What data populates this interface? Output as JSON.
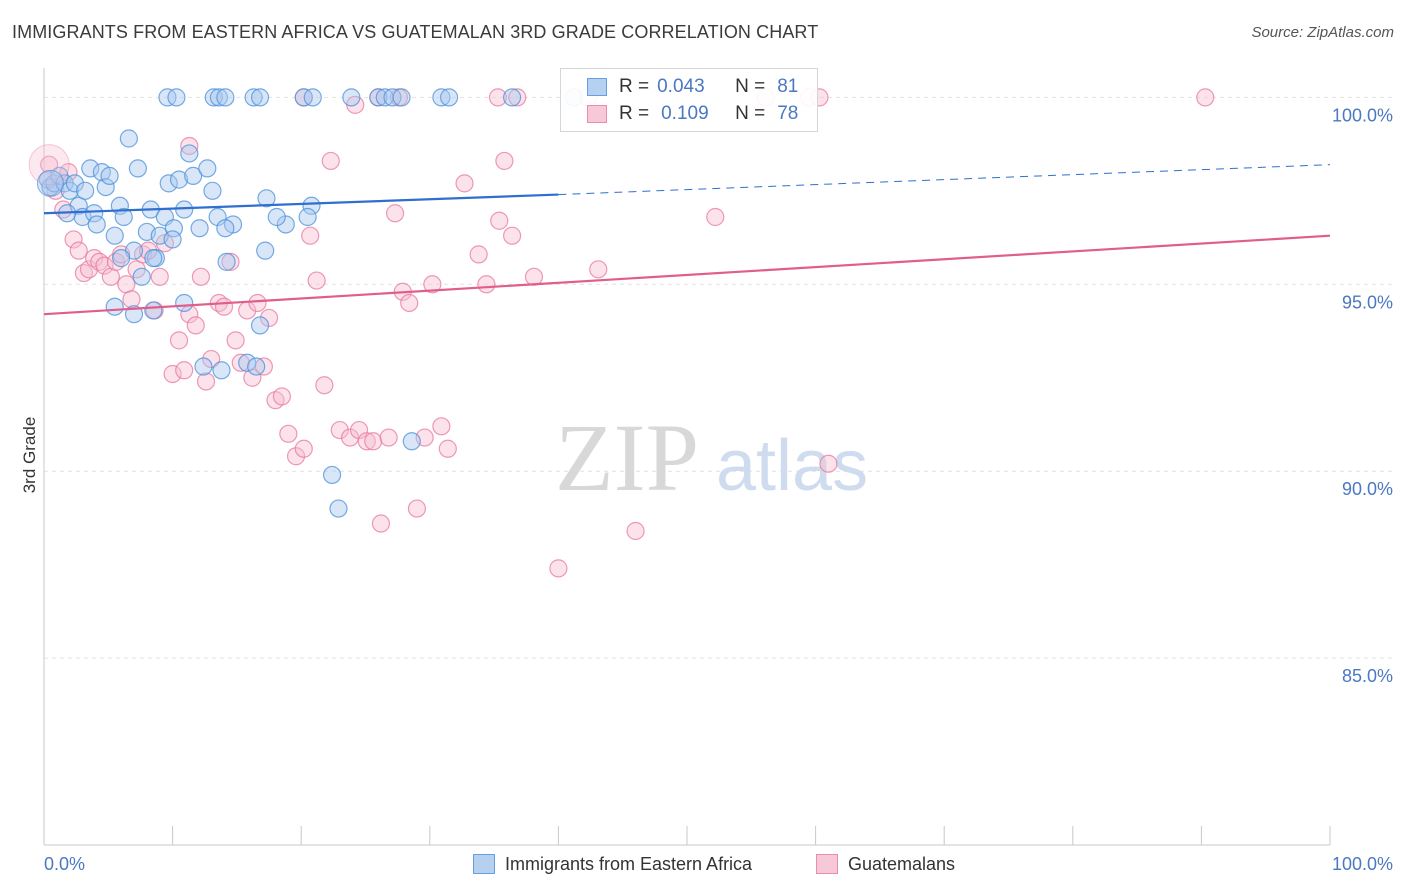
{
  "chart_data": {
    "type": "scatter",
    "title": "IMMIGRANTS FROM EASTERN AFRICA VS GUATEMALAN 3RD GRADE CORRELATION CHART",
    "source": "Source: ZipAtlas.com",
    "xlabel": "",
    "ylabel": "3rd Grade",
    "xlim": [
      0,
      100
    ],
    "ylim": [
      80,
      101
    ],
    "x_tick_labels": [
      "0.0%",
      "100.0%"
    ],
    "y_ticks": [
      85,
      90,
      95,
      100
    ],
    "y_tick_labels": [
      "85.0%",
      "90.0%",
      "95.0%",
      "100.0%"
    ],
    "grid": true,
    "watermark": {
      "zip": "ZIP",
      "atlas": "atlas"
    },
    "stats": [
      {
        "r_label": "R =",
        "r": "0.043",
        "n_label": "N =",
        "n": "81"
      },
      {
        "r_label": "R =",
        "r": "0.109",
        "n_label": "N =",
        "n": "78"
      }
    ],
    "series": [
      {
        "name": "Immigrants from Eastern Africa",
        "color": "#4a90d9",
        "fill": "#a9c8ef",
        "trend": {
          "x0": 0,
          "y0": 96.9,
          "x1": 40,
          "y1": 97.4,
          "dash_to_x": 100,
          "dash_to_y": 98.2
        },
        "points": [
          [
            0.3,
            97.8
          ],
          [
            0.5,
            97.6
          ],
          [
            0.8,
            97.7
          ],
          [
            1.2,
            97.9
          ],
          [
            1.6,
            97.7
          ],
          [
            2.0,
            97.5
          ],
          [
            2.4,
            97.7
          ],
          [
            2.7,
            97.1
          ],
          [
            3.0,
            96.8
          ],
          [
            3.2,
            97.5
          ],
          [
            3.6,
            98.1
          ],
          [
            3.9,
            96.9
          ],
          [
            4.1,
            96.6
          ],
          [
            4.5,
            98.0
          ],
          [
            4.8,
            97.6
          ],
          [
            5.1,
            97.9
          ],
          [
            5.5,
            96.3
          ],
          [
            5.9,
            97.1
          ],
          [
            6.2,
            96.8
          ],
          [
            6.6,
            98.9
          ],
          [
            7.0,
            95.9
          ],
          [
            7.3,
            98.1
          ],
          [
            7.6,
            95.2
          ],
          [
            8.0,
            96.4
          ],
          [
            8.3,
            97.0
          ],
          [
            8.7,
            95.7
          ],
          [
            9.0,
            96.3
          ],
          [
            9.4,
            96.8
          ],
          [
            9.7,
            97.7
          ],
          [
            10.1,
            96.5
          ],
          [
            10.5,
            97.8
          ],
          [
            10.9,
            97.0
          ],
          [
            11.3,
            98.5
          ],
          [
            11.6,
            97.9
          ],
          [
            12.1,
            96.5
          ],
          [
            12.7,
            98.1
          ],
          [
            13.1,
            97.5
          ],
          [
            13.5,
            96.8
          ],
          [
            14.2,
            95.6
          ],
          [
            5.5,
            94.4
          ],
          [
            7.0,
            94.2
          ],
          [
            8.5,
            94.3
          ],
          [
            10.0,
            96.2
          ],
          [
            10.9,
            94.5
          ],
          [
            12.4,
            92.8
          ],
          [
            13.8,
            92.7
          ],
          [
            14.7,
            96.6
          ],
          [
            15.8,
            92.9
          ],
          [
            16.8,
            93.9
          ],
          [
            16.5,
            92.8
          ],
          [
            17.2,
            95.9
          ],
          [
            18.8,
            96.6
          ],
          [
            17.3,
            97.3
          ],
          [
            18.1,
            96.8
          ],
          [
            20.8,
            97.1
          ],
          [
            20.5,
            96.8
          ],
          [
            22.4,
            89.9
          ],
          [
            22.9,
            89.0
          ],
          [
            28.6,
            90.8
          ],
          [
            8.5,
            95.7
          ],
          [
            14.1,
            96.5
          ],
          [
            9.6,
            100.0
          ],
          [
            10.3,
            100.0
          ],
          [
            13.2,
            100.0
          ],
          [
            13.6,
            100.0
          ],
          [
            14.1,
            100.0
          ],
          [
            16.3,
            100.0
          ],
          [
            16.8,
            100.0
          ],
          [
            20.2,
            100.0
          ],
          [
            20.9,
            100.0
          ],
          [
            23.9,
            100.0
          ],
          [
            26.0,
            100.0
          ],
          [
            26.5,
            100.0
          ],
          [
            27.1,
            100.0
          ],
          [
            27.8,
            100.0
          ],
          [
            30.9,
            100.0
          ],
          [
            31.5,
            100.0
          ],
          [
            36.4,
            100.0
          ],
          [
            41.2,
            100.0
          ],
          [
            1.8,
            96.9
          ],
          [
            6.0,
            95.7
          ]
        ]
      },
      {
        "name": "Guatemalans",
        "color": "#e8789f",
        "fill": "#f6bfd2",
        "trend": {
          "x0": 0,
          "y0": 94.2,
          "x1": 100,
          "y1": 96.3
        },
        "points": [
          [
            0.4,
            98.2
          ],
          [
            0.9,
            97.5
          ],
          [
            1.5,
            97.0
          ],
          [
            1.9,
            98.0
          ],
          [
            2.3,
            96.2
          ],
          [
            2.7,
            95.9
          ],
          [
            3.1,
            95.3
          ],
          [
            3.5,
            95.4
          ],
          [
            3.9,
            95.7
          ],
          [
            4.3,
            95.6
          ],
          [
            4.7,
            95.5
          ],
          [
            5.2,
            95.2
          ],
          [
            5.6,
            95.6
          ],
          [
            6.0,
            95.8
          ],
          [
            6.4,
            95.0
          ],
          [
            6.8,
            94.6
          ],
          [
            7.2,
            95.4
          ],
          [
            7.7,
            95.8
          ],
          [
            8.1,
            95.9
          ],
          [
            8.6,
            94.3
          ],
          [
            9.0,
            95.2
          ],
          [
            9.4,
            96.1
          ],
          [
            10.0,
            92.6
          ],
          [
            10.5,
            93.5
          ],
          [
            10.9,
            92.7
          ],
          [
            11.3,
            94.2
          ],
          [
            11.8,
            93.9
          ],
          [
            12.2,
            95.2
          ],
          [
            12.6,
            92.4
          ],
          [
            13.0,
            93.0
          ],
          [
            13.6,
            94.5
          ],
          [
            14.0,
            94.4
          ],
          [
            14.5,
            95.6
          ],
          [
            14.9,
            93.5
          ],
          [
            15.3,
            92.9
          ],
          [
            15.8,
            94.3
          ],
          [
            16.2,
            92.5
          ],
          [
            16.6,
            94.5
          ],
          [
            17.1,
            92.8
          ],
          [
            17.5,
            94.1
          ],
          [
            18.0,
            91.9
          ],
          [
            18.5,
            92.0
          ],
          [
            19.0,
            91.0
          ],
          [
            19.6,
            90.4
          ],
          [
            20.2,
            90.6
          ],
          [
            20.7,
            96.3
          ],
          [
            21.2,
            95.1
          ],
          [
            21.8,
            92.3
          ],
          [
            22.3,
            98.3
          ],
          [
            23.0,
            91.1
          ],
          [
            23.8,
            90.9
          ],
          [
            24.5,
            91.1
          ],
          [
            25.1,
            90.8
          ],
          [
            25.6,
            90.8
          ],
          [
            26.2,
            88.6
          ],
          [
            26.8,
            90.9
          ],
          [
            27.3,
            96.9
          ],
          [
            27.9,
            94.8
          ],
          [
            28.4,
            94.5
          ],
          [
            29.0,
            89.0
          ],
          [
            29.6,
            90.9
          ],
          [
            30.2,
            95.0
          ],
          [
            30.9,
            91.2
          ],
          [
            31.4,
            90.6
          ],
          [
            32.7,
            97.7
          ],
          [
            33.8,
            95.8
          ],
          [
            34.4,
            95.0
          ],
          [
            35.4,
            96.7
          ],
          [
            35.8,
            98.3
          ],
          [
            36.4,
            96.3
          ],
          [
            38.1,
            95.2
          ],
          [
            40.0,
            87.4
          ],
          [
            43.1,
            95.4
          ],
          [
            46.0,
            88.4
          ],
          [
            52.2,
            96.8
          ],
          [
            61.0,
            90.2
          ],
          [
            11.3,
            98.7
          ],
          [
            90.3,
            100.0
          ]
        ]
      }
    ]
  },
  "extra_points": {
    "Guatemalans_top": [
      [
        20.2,
        100.0
      ],
      [
        24.2,
        99.8
      ],
      [
        26.0,
        100.0
      ],
      [
        27.6,
        100.0
      ],
      [
        35.3,
        100.0
      ],
      [
        36.8,
        100.0
      ],
      [
        42.3,
        100.0
      ],
      [
        56.1,
        100.0
      ],
      [
        59.5,
        100.0
      ],
      [
        60.3,
        100.0
      ]
    ]
  }
}
